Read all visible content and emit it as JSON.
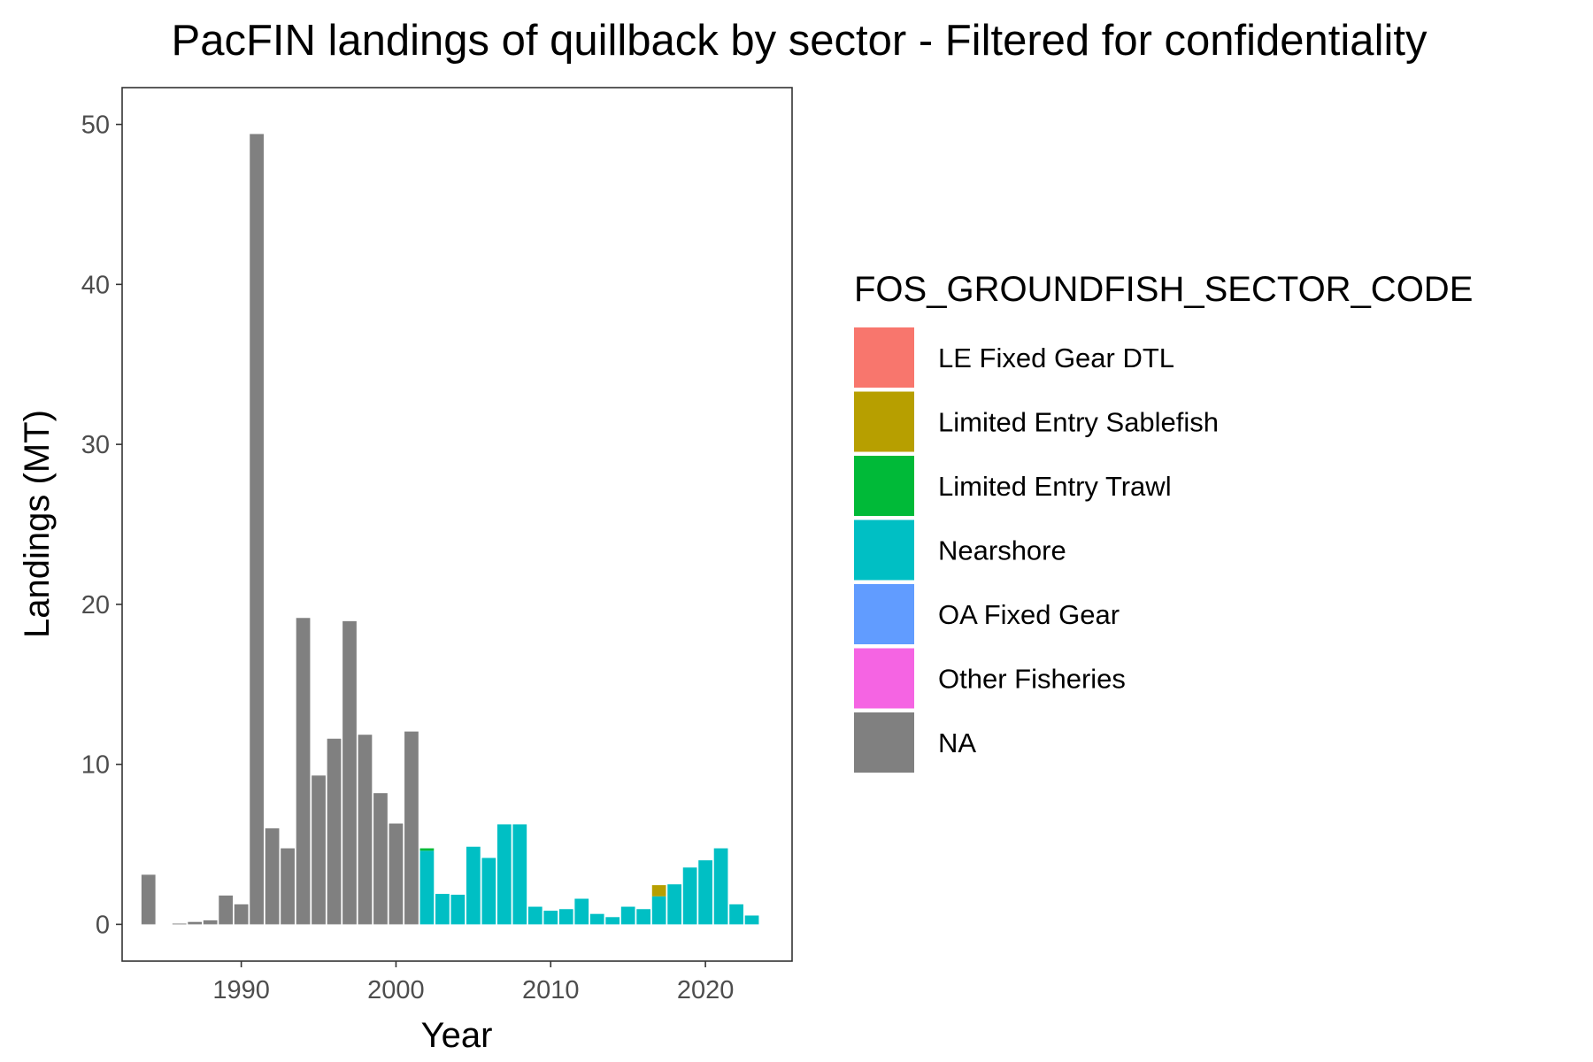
{
  "chart_data": {
    "type": "bar",
    "stacked": true,
    "title": "PacFIN landings of quillback by sector - Filtered for confidentiality",
    "xlabel": "Year",
    "ylabel": "Landings (MT)",
    "xlim": [
      1982.3,
      2025.6
    ],
    "ylim": [
      -2.3,
      52.3
    ],
    "x_ticks": [
      1990,
      2000,
      2010,
      2020
    ],
    "y_ticks": [
      0,
      10,
      20,
      30,
      40,
      50
    ],
    "grid": false,
    "legend_position": "right",
    "legend_title": "FOS_GROUNDFISH_SECTOR_CODE",
    "series": [
      {
        "name": "LE Fixed Gear DTL",
        "color": "#F8766D",
        "points": []
      },
      {
        "name": "Limited Entry Sablefish",
        "color": "#B79F00",
        "points": [
          [
            2017,
            0.7
          ]
        ]
      },
      {
        "name": "Limited Entry Trawl",
        "color": "#00BA38",
        "points": [
          [
            2002,
            0.15
          ]
        ]
      },
      {
        "name": "Nearshore",
        "color": "#00BFC4",
        "points": [
          [
            2002,
            4.6
          ],
          [
            2003,
            1.9
          ],
          [
            2004,
            1.85
          ],
          [
            2005,
            4.85
          ],
          [
            2006,
            4.15
          ],
          [
            2007,
            6.25
          ],
          [
            2008,
            6.25
          ],
          [
            2009,
            1.1
          ],
          [
            2010,
            0.85
          ],
          [
            2011,
            0.95
          ],
          [
            2012,
            1.6
          ],
          [
            2013,
            0.65
          ],
          [
            2014,
            0.45
          ],
          [
            2015,
            1.1
          ],
          [
            2016,
            0.95
          ],
          [
            2017,
            1.75
          ],
          [
            2018,
            2.5
          ],
          [
            2019,
            3.55
          ],
          [
            2020,
            4.0
          ],
          [
            2021,
            4.75
          ],
          [
            2022,
            1.25
          ],
          [
            2023,
            0.55
          ]
        ]
      },
      {
        "name": "OA Fixed Gear",
        "color": "#619CFF",
        "points": []
      },
      {
        "name": "Other Fisheries",
        "color": "#F564E3",
        "points": []
      },
      {
        "name": "NA",
        "color": "#808080",
        "points": [
          [
            1984,
            3.1
          ],
          [
            1986,
            0.05
          ],
          [
            1987,
            0.15
          ],
          [
            1988,
            0.25
          ],
          [
            1989,
            1.8
          ],
          [
            1990,
            1.25
          ],
          [
            1991,
            49.4
          ],
          [
            1992,
            6.0
          ],
          [
            1993,
            4.75
          ],
          [
            1994,
            19.15
          ],
          [
            1995,
            9.3
          ],
          [
            1996,
            11.6
          ],
          [
            1997,
            18.95
          ],
          [
            1998,
            11.85
          ],
          [
            1999,
            8.2
          ],
          [
            2000,
            6.3
          ],
          [
            2001,
            12.05
          ]
        ]
      }
    ]
  }
}
